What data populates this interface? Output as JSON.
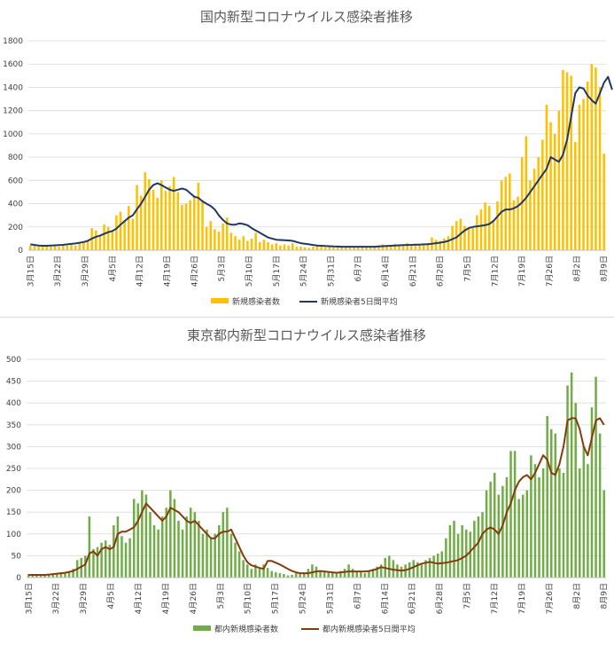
{
  "chart_data": [
    {
      "type": "bar",
      "title": "国内新型コロナウイルス感染者推移",
      "xlabel": "",
      "ylabel": "",
      "ylim": [
        0,
        1800
      ],
      "yticks": [
        0,
        200,
        400,
        600,
        800,
        1000,
        1200,
        1400,
        1600,
        1800
      ],
      "x_tick_labels": [
        "3月15日",
        "3月22日",
        "3月29日",
        "4月5日",
        "4月12日",
        "4月19日",
        "4月26日",
        "5月3日",
        "5月10日",
        "5月17日",
        "5月24日",
        "5月31日",
        "6月7日",
        "6月14日",
        "6月21日",
        "6月28日",
        "7月5日",
        "7月12日",
        "7月19日",
        "7月26日",
        "8月2日",
        "8月9日"
      ],
      "grid": true,
      "legend_position": "bottom",
      "series": [
        {
          "name": "新規感染者数",
          "type": "bar",
          "color": "#FFC000",
          "values": [
            40,
            35,
            30,
            30,
            40,
            30,
            50,
            30,
            45,
            40,
            45,
            40,
            60,
            70,
            80,
            190,
            170,
            130,
            220,
            200,
            170,
            300,
            330,
            260,
            380,
            270,
            560,
            470,
            670,
            610,
            520,
            450,
            600,
            510,
            550,
            630,
            500,
            390,
            400,
            430,
            460,
            580,
            430,
            200,
            250,
            180,
            160,
            230,
            280,
            150,
            120,
            90,
            120,
            80,
            100,
            150,
            70,
            90,
            70,
            50,
            60,
            40,
            50,
            40,
            60,
            30,
            30,
            25,
            20,
            30,
            40,
            30,
            25,
            35,
            25,
            40,
            30,
            25,
            30,
            25,
            30,
            25,
            25,
            30,
            35,
            40,
            50,
            45,
            30,
            55,
            45,
            50,
            60,
            40,
            55,
            55,
            50,
            60,
            110,
            90,
            80,
            100,
            120,
            210,
            250,
            270,
            210,
            200,
            190,
            300,
            350,
            410,
            380,
            260,
            420,
            600,
            630,
            660,
            430,
            460,
            800,
            980,
            600,
            700,
            800,
            950,
            1250,
            1100,
            1000,
            1200,
            1550,
            1530,
            1500,
            930,
            1250,
            1300,
            1450,
            1600,
            1570,
            1400,
            830
          ]
        },
        {
          "name": "新規感染者5日間平均",
          "type": "line",
          "color": "#203864",
          "values": [
            50,
            45,
            40,
            38,
            38,
            40,
            42,
            44,
            46,
            50,
            54,
            58,
            64,
            70,
            80,
            100,
            115,
            125,
            140,
            155,
            165,
            185,
            220,
            250,
            280,
            300,
            350,
            400,
            460,
            520,
            560,
            575,
            560,
            540,
            520,
            510,
            520,
            530,
            520,
            490,
            460,
            450,
            420,
            400,
            380,
            350,
            300,
            260,
            230,
            220,
            220,
            230,
            225,
            215,
            190,
            170,
            150,
            130,
            110,
            100,
            90,
            88,
            86,
            84,
            80,
            70,
            60,
            55,
            50,
            45,
            40,
            38,
            36,
            34,
            32,
            31,
            30,
            30,
            30,
            30,
            30,
            30,
            30,
            30,
            30,
            32,
            34,
            36,
            38,
            40,
            42,
            44,
            45,
            46,
            47,
            48,
            50,
            52,
            55,
            60,
            65,
            70,
            80,
            95,
            110,
            140,
            170,
            190,
            200,
            205,
            210,
            215,
            225,
            250,
            290,
            330,
            350,
            350,
            360,
            380,
            410,
            450,
            500,
            550,
            600,
            650,
            700,
            800,
            780,
            760,
            820,
            950,
            1150,
            1350,
            1400,
            1390,
            1330,
            1290,
            1260,
            1350,
            1440,
            1490,
            1380
          ]
        }
      ]
    },
    {
      "type": "bar",
      "title": "東京都内新型コロナウイルス感染者推移",
      "xlabel": "",
      "ylabel": "",
      "ylim": [
        0,
        500
      ],
      "yticks": [
        0,
        50,
        100,
        150,
        200,
        250,
        300,
        350,
        400,
        450,
        500
      ],
      "x_tick_labels": [
        "3月15日",
        "3月22日",
        "3月29日",
        "4月5日",
        "4月12日",
        "4月19日",
        "4月26日",
        "5月3日",
        "5月10日",
        "5月17日",
        "5月24日",
        "5月31日",
        "6月7日",
        "6月14日",
        "6月21日",
        "6月28日",
        "7月5日",
        "7月12日",
        "7月19日",
        "7月26日",
        "8月2日",
        "8月9日"
      ],
      "grid": true,
      "legend_position": "bottom",
      "series": [
        {
          "name": "都内新規感染者数",
          "type": "bar",
          "color": "#70AD47",
          "values": [
            8,
            6,
            5,
            4,
            5,
            6,
            8,
            10,
            12,
            10,
            15,
            20,
            40,
            45,
            50,
            140,
            65,
            70,
            80,
            85,
            75,
            120,
            140,
            95,
            80,
            90,
            180,
            170,
            200,
            190,
            150,
            120,
            110,
            140,
            160,
            200,
            180,
            130,
            110,
            140,
            160,
            150,
            130,
            100,
            110,
            90,
            100,
            120,
            150,
            160,
            100,
            80,
            60,
            40,
            30,
            20,
            30,
            20,
            30,
            22,
            15,
            12,
            10,
            8,
            5,
            6,
            10,
            8,
            12,
            20,
            30,
            25,
            15,
            12,
            14,
            12,
            10,
            15,
            20,
            30,
            20,
            15,
            12,
            10,
            15,
            20,
            25,
            30,
            45,
            50,
            40,
            30,
            25,
            30,
            35,
            40,
            35,
            30,
            40,
            45,
            50,
            55,
            60,
            90,
            120,
            130,
            100,
            120,
            110,
            105,
            130,
            140,
            150,
            200,
            220,
            240,
            190,
            210,
            230,
            290,
            290,
            180,
            190,
            200,
            280,
            260,
            230,
            250,
            370,
            340,
            330,
            250,
            240,
            440,
            470,
            400,
            250,
            300,
            260,
            390,
            460,
            330,
            200
          ]
        },
        {
          "name": "都内新規感染者5日間平均",
          "type": "line",
          "color": "#843C0C",
          "values": [
            6,
            6,
            6,
            6,
            6,
            7,
            8,
            9,
            10,
            11,
            13,
            15,
            20,
            25,
            30,
            55,
            60,
            50,
            65,
            70,
            65,
            70,
            100,
            105,
            105,
            110,
            115,
            130,
            150,
            170,
            160,
            150,
            140,
            130,
            140,
            160,
            155,
            150,
            140,
            130,
            125,
            130,
            120,
            110,
            100,
            90,
            90,
            100,
            105,
            105,
            110,
            90,
            70,
            50,
            35,
            28,
            25,
            22,
            20,
            38,
            38,
            34,
            30,
            25,
            20,
            15,
            12,
            10,
            10,
            10,
            12,
            14,
            15,
            14,
            13,
            12,
            11,
            12,
            13,
            14,
            14,
            14,
            14,
            14,
            15,
            17,
            20,
            24,
            22,
            20,
            18,
            17,
            16,
            17,
            20,
            24,
            28,
            32,
            34,
            36,
            34,
            32,
            33,
            34,
            36,
            38,
            40,
            45,
            50,
            60,
            70,
            80,
            100,
            110,
            115,
            110,
            100,
            120,
            150,
            170,
            200,
            220,
            230,
            235,
            225,
            240,
            260,
            280,
            270,
            240,
            235,
            260,
            300,
            360,
            365,
            365,
            340,
            300,
            280,
            320,
            360,
            365,
            350
          ]
        }
      ]
    }
  ]
}
